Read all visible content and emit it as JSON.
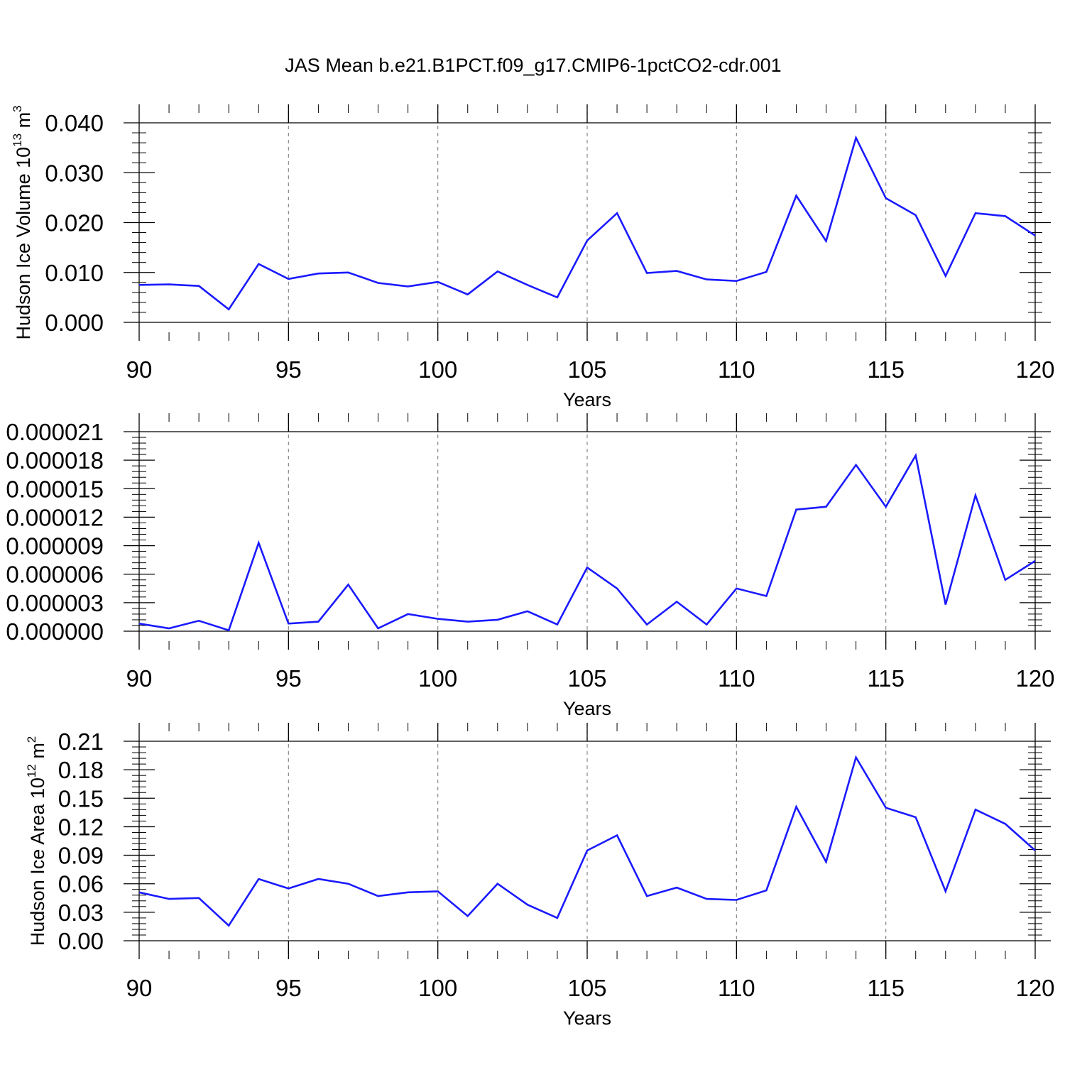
{
  "title": "JAS Mean b.e21.B1PCT.f09_g17.CMIP6-1pctCO2-cdr.001",
  "colors": {
    "line": "#1a1aff",
    "axis": "#000000",
    "grid": "#888888"
  },
  "chart_data": [
    {
      "type": "line",
      "ylabel": "Hudson Ice Volume 10",
      "ylabel_exp": "13",
      "ylabel_unit": " m",
      "ylabel_unit_exp": "3",
      "xlabel": "Years",
      "xlim": [
        90,
        120
      ],
      "ylim": [
        0,
        0.04
      ],
      "xticks": [
        90,
        95,
        100,
        105,
        110,
        115,
        120
      ],
      "yticks": [
        "0.000",
        "0.010",
        "0.020",
        "0.030",
        "0.040"
      ],
      "ytick_values": [
        0,
        0.01,
        0.02,
        0.03,
        0.04
      ],
      "grid": "vertical dashed at major x ticks",
      "series": [
        {
          "x": [
            90,
            91,
            92,
            93,
            94,
            95,
            96,
            97,
            98,
            99,
            100,
            101,
            102,
            103,
            104,
            105,
            106,
            107,
            108,
            109,
            110,
            111,
            112,
            113,
            114,
            115,
            116,
            117,
            118,
            119,
            120
          ],
          "values": [
            0.0075,
            0.0076,
            0.0073,
            0.0026,
            0.0117,
            0.0087,
            0.0098,
            0.01,
            0.0079,
            0.0072,
            0.0081,
            0.0056,
            0.0102,
            0.0075,
            0.005,
            0.0164,
            0.0219,
            0.0099,
            0.0103,
            0.0086,
            0.0083,
            0.0101,
            0.0254,
            0.0163,
            0.037,
            0.0249,
            0.0215,
            0.0093,
            0.0219,
            0.0213,
            0.0174
          ]
        }
      ]
    },
    {
      "type": "line",
      "ylabel": "",
      "xlabel": "Years",
      "xlim": [
        90,
        120
      ],
      "ylim": [
        0,
        2.1e-05
      ],
      "xticks": [
        90,
        95,
        100,
        105,
        110,
        115,
        120
      ],
      "yticks": [
        "0.000000",
        "0.000003",
        "0.000006",
        "0.000009",
        "0.000012",
        "0.000015",
        "0.000018",
        "0.000021"
      ],
      "ytick_values": [
        0,
        3e-06,
        6e-06,
        9e-06,
        1.2e-05,
        1.5e-05,
        1.8e-05,
        2.1e-05
      ],
      "grid": "vertical dashed at major x ticks",
      "series": [
        {
          "x": [
            90,
            91,
            92,
            93,
            94,
            95,
            96,
            97,
            98,
            99,
            100,
            101,
            102,
            103,
            104,
            105,
            106,
            107,
            108,
            109,
            110,
            111,
            112,
            113,
            114,
            115,
            116,
            117,
            118,
            119,
            120
          ],
          "values": [
            8e-07,
            3e-07,
            1.1e-06,
            1e-07,
            9.3e-06,
            8e-07,
            1e-06,
            4.9e-06,
            3e-07,
            1.8e-06,
            1.3e-06,
            1e-06,
            1.2e-06,
            2.1e-06,
            7e-07,
            6.7e-06,
            4.5e-06,
            7e-07,
            3.1e-06,
            7e-07,
            4.5e-06,
            3.7e-06,
            1.28e-05,
            1.31e-05,
            1.75e-05,
            1.31e-05,
            1.85e-05,
            2.8e-06,
            1.43e-05,
            5.4e-06,
            7.4e-06
          ]
        }
      ]
    },
    {
      "type": "line",
      "ylabel": "Hudson Ice Area 10",
      "ylabel_exp": "12",
      "ylabel_unit": " m",
      "ylabel_unit_exp": "2",
      "xlabel": "Years",
      "xlim": [
        90,
        120
      ],
      "ylim": [
        0,
        0.21
      ],
      "xticks": [
        90,
        95,
        100,
        105,
        110,
        115,
        120
      ],
      "yticks": [
        "0.00",
        "0.03",
        "0.06",
        "0.09",
        "0.12",
        "0.15",
        "0.18",
        "0.21"
      ],
      "ytick_values": [
        0,
        0.03,
        0.06,
        0.09,
        0.12,
        0.15,
        0.18,
        0.21
      ],
      "grid": "vertical dashed at major x ticks",
      "series": [
        {
          "x": [
            90,
            91,
            92,
            93,
            94,
            95,
            96,
            97,
            98,
            99,
            100,
            101,
            102,
            103,
            104,
            105,
            106,
            107,
            108,
            109,
            110,
            111,
            112,
            113,
            114,
            115,
            116,
            117,
            118,
            119,
            120
          ],
          "values": [
            0.051,
            0.044,
            0.045,
            0.016,
            0.065,
            0.055,
            0.065,
            0.06,
            0.047,
            0.051,
            0.052,
            0.026,
            0.06,
            0.038,
            0.024,
            0.095,
            0.111,
            0.047,
            0.056,
            0.044,
            0.043,
            0.053,
            0.141,
            0.083,
            0.193,
            0.14,
            0.13,
            0.052,
            0.138,
            0.123,
            0.095
          ]
        }
      ]
    }
  ]
}
